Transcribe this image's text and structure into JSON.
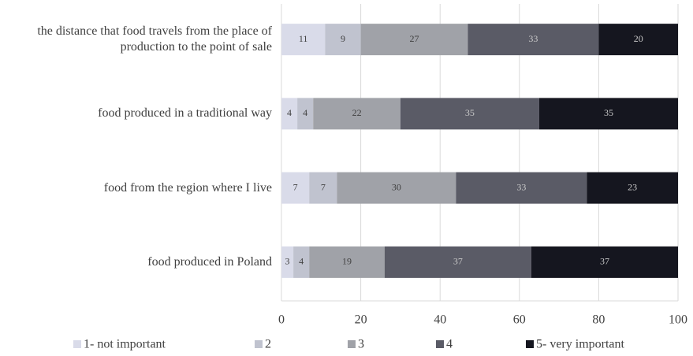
{
  "chart_data": {
    "type": "stacked_barh",
    "categories": [
      "the distance that food travels from the place of production to the point of sale",
      "food produced in a traditional way",
      "food from the region where I live",
      "food produced in Poland"
    ],
    "series": [
      {
        "name": "1- not important",
        "color": "#d9dbe9",
        "values": [
          11,
          4,
          7,
          3
        ]
      },
      {
        "name": "2",
        "color": "#c0c3cf",
        "values": [
          9,
          4,
          7,
          4
        ]
      },
      {
        "name": "3",
        "color": "#a0a2a8",
        "values": [
          27,
          22,
          30,
          19
        ]
      },
      {
        "name": "4",
        "color": "#5a5b66",
        "values": [
          33,
          35,
          33,
          37
        ]
      },
      {
        "name": "5- very important",
        "color": "#15161f",
        "values": [
          20,
          35,
          23,
          37
        ]
      }
    ],
    "xlim": [
      0,
      100
    ],
    "xticks": [
      0,
      20,
      40,
      60,
      80,
      100
    ],
    "grid": true,
    "legend": "bottom"
  }
}
